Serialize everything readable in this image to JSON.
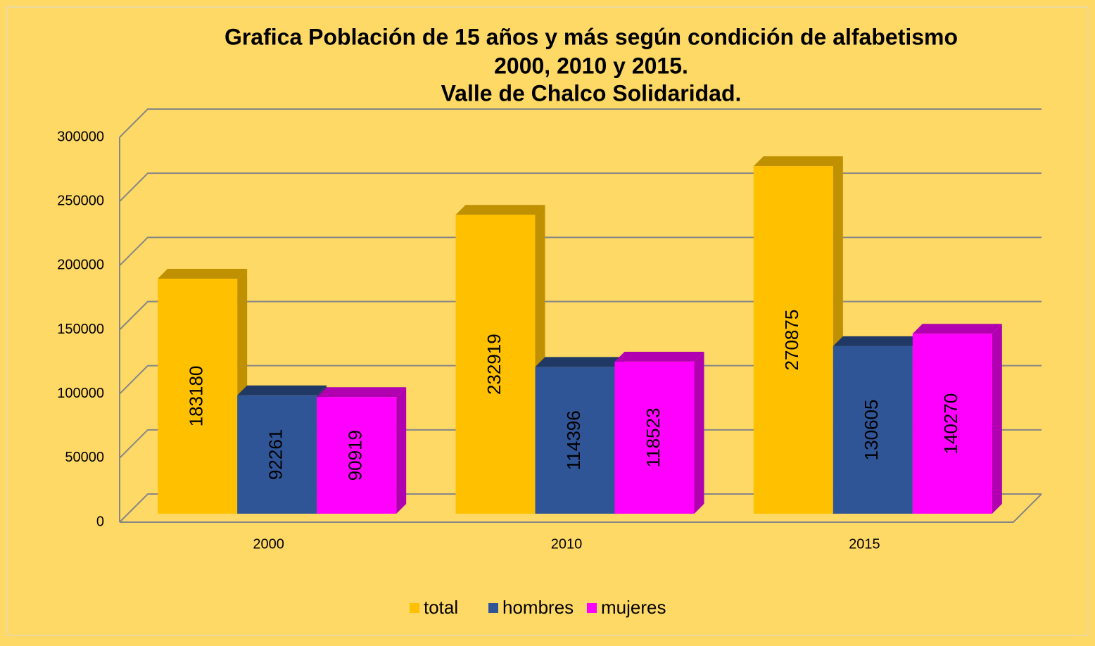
{
  "chart_data": {
    "type": "bar3d",
    "title": [
      "Grafica Población de 15 años y más según condición de  alfabetismo",
      "2000, 2010 y 2015.",
      "Valle de Chalco Solidaridad."
    ],
    "categories": [
      "2000",
      "2010",
      "2015"
    ],
    "series": [
      {
        "name": "total",
        "color": "#FFC000",
        "side": "#BF9000",
        "values": [
          183180,
          232919,
          270875
        ]
      },
      {
        "name": "hombres",
        "color": "#2F5597",
        "side": "#1F3864",
        "values": [
          92261,
          114396,
          130605
        ]
      },
      {
        "name": "mujeres",
        "color": "#FF00FF",
        "side": "#B000B0",
        "values": [
          90919,
          118523,
          140270
        ]
      }
    ],
    "ylim": [
      0,
      300000
    ],
    "yticks": [
      0,
      50000,
      100000,
      150000,
      200000,
      250000,
      300000
    ],
    "grid": true,
    "legend": "bottom"
  }
}
